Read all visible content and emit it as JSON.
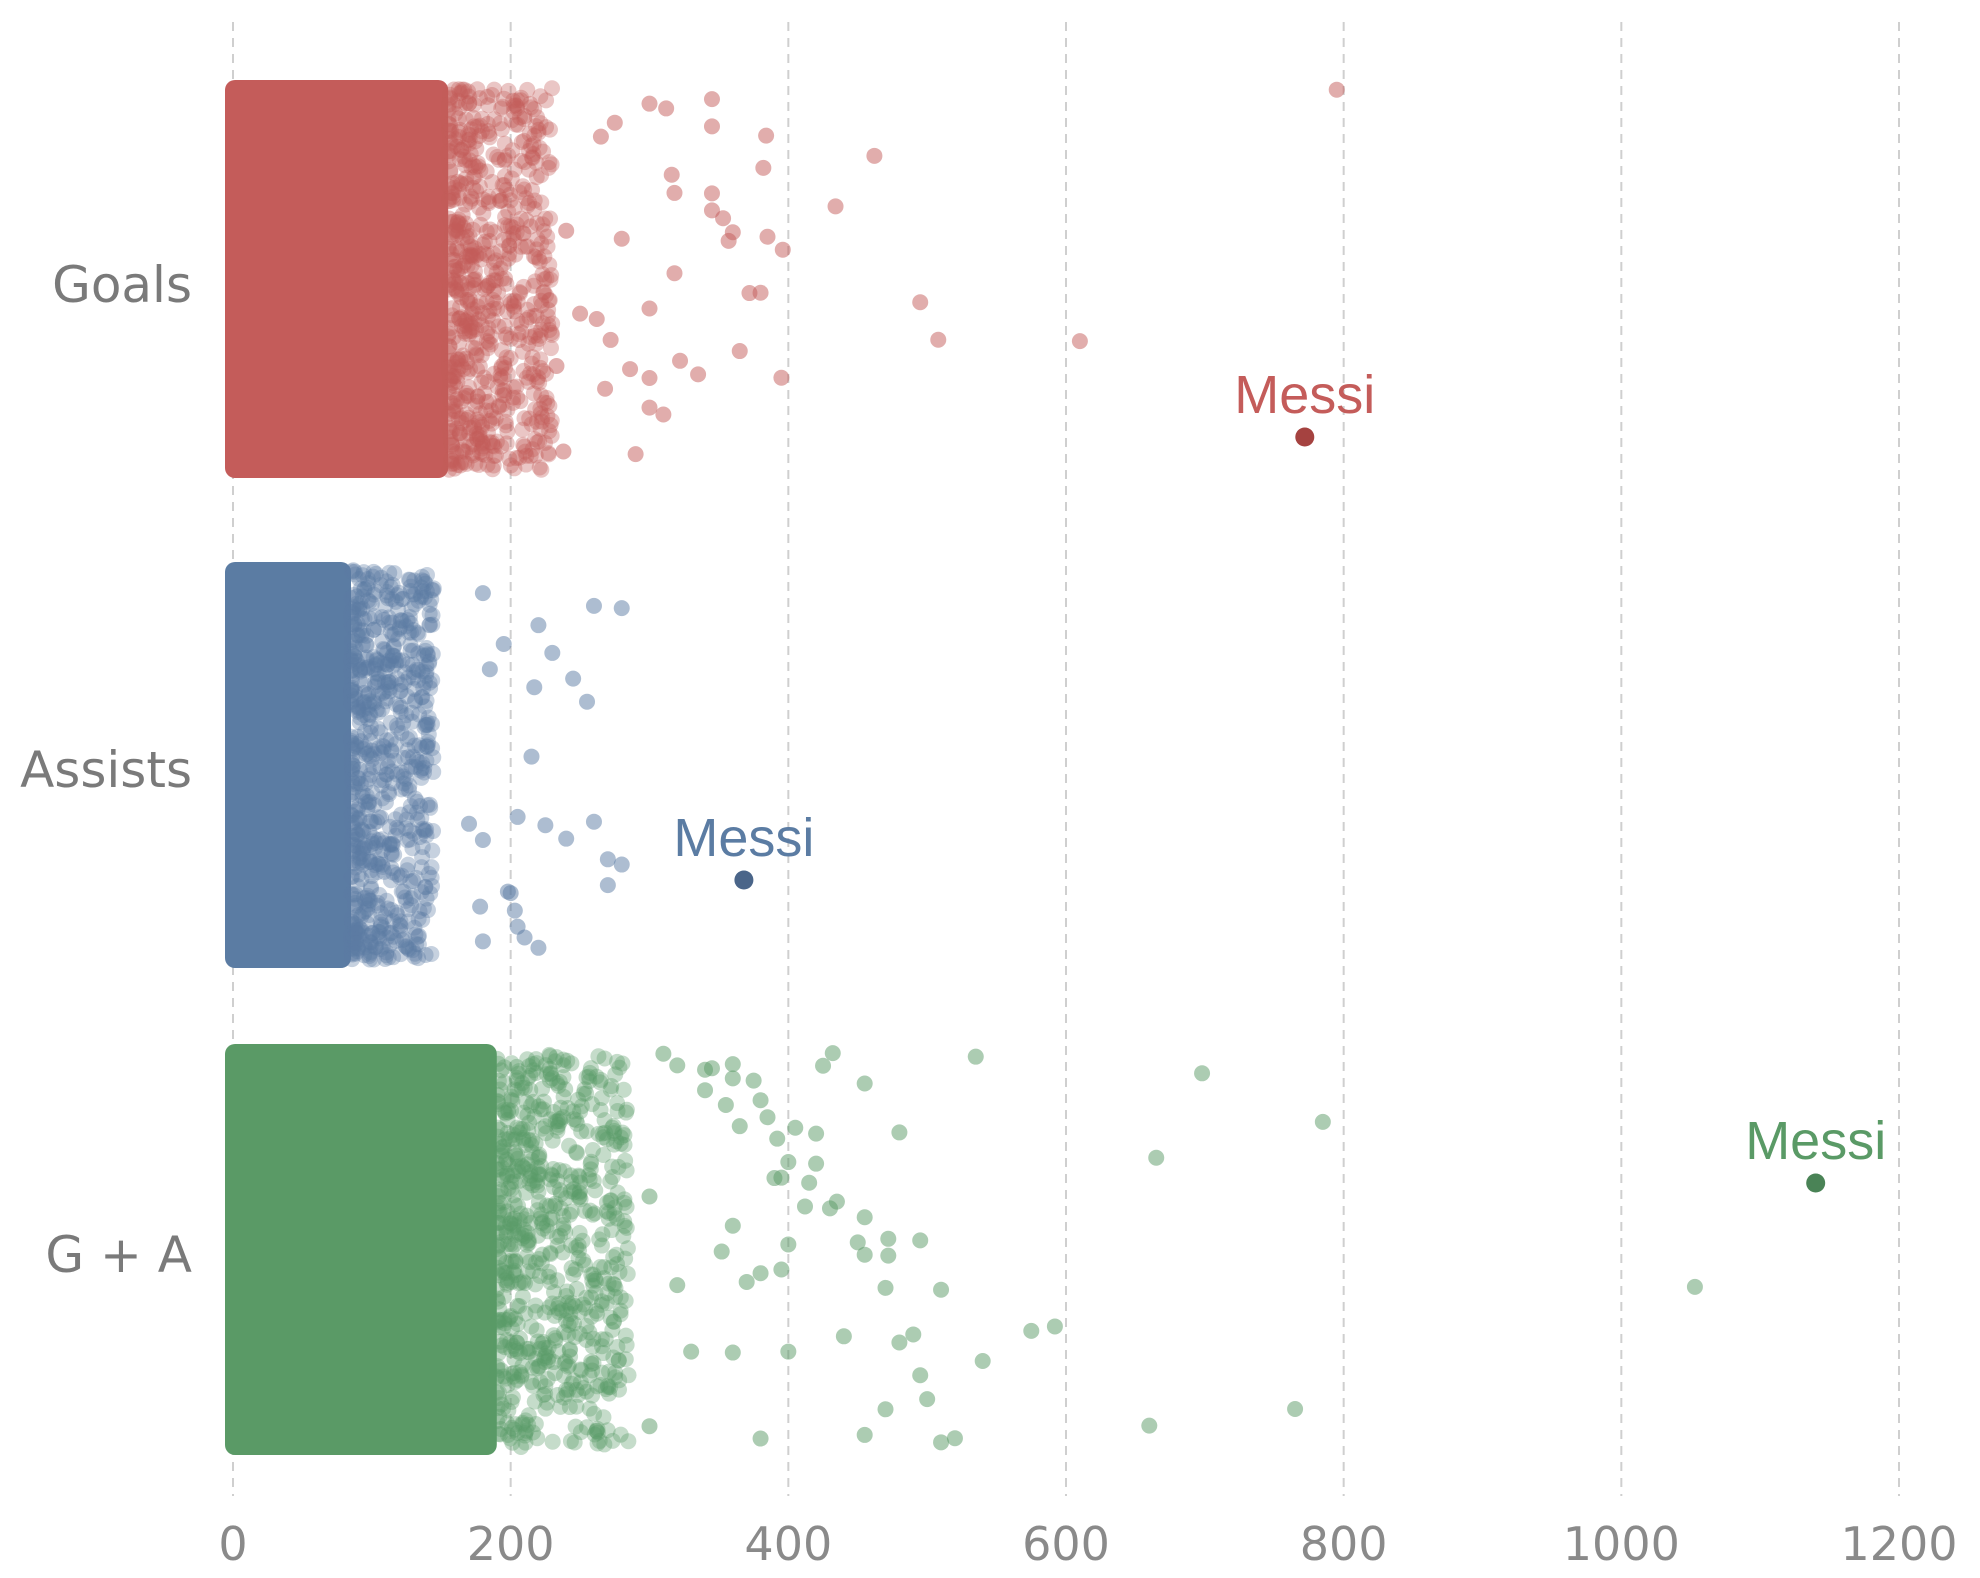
{
  "chart_data": {
    "type": "scatter",
    "xlim": [
      0,
      1200
    ],
    "xticks": [
      0,
      200,
      400,
      600,
      800,
      1000,
      1200
    ],
    "grid": true,
    "categories": [
      "Goals",
      "Assists",
      "G + A"
    ],
    "series": [
      {
        "category": "Goals",
        "color": "#c45c5a",
        "highlight_color": "#a54240",
        "dense_max": 155,
        "fade_end": 230,
        "points": [
          495,
          312,
          372,
          365,
          434,
          395,
          462,
          382,
          380,
          384,
          353,
          357,
          318,
          300,
          290,
          286,
          268,
          262,
          280,
          275,
          250,
          238,
          240,
          233,
          272,
          265,
          300,
          318,
          310,
          345,
          360,
          345,
          396,
          345,
          335,
          322,
          300,
          508,
          610,
          795,
          345,
          385,
          316,
          300
        ],
        "highlight": {
          "label": "Messi",
          "value": 772
        }
      },
      {
        "category": "Assists",
        "color": "#5b7ca3",
        "highlight_color": "#4a6589",
        "dense_max": 85,
        "fade_end": 145,
        "points": [
          270,
          280,
          217,
          180,
          205,
          198,
          170,
          255,
          185,
          180,
          203,
          245,
          230,
          220,
          215,
          200,
          195,
          180,
          260,
          270,
          280,
          178,
          260,
          210,
          240,
          225,
          205,
          220
        ],
        "highlight": {
          "label": "Messi",
          "value": 368
        }
      },
      {
        "category": "G + A",
        "color": "#5a9a66",
        "highlight_color": "#4a8356",
        "dense_max": 190,
        "fade_end": 285,
        "points": [
          455,
          520,
          592,
          660,
          765,
          698,
          665,
          500,
          495,
          470,
          440,
          432,
          412,
          395,
          392,
          380,
          360,
          355,
          352,
          320,
          300,
          540,
          510,
          472,
          425,
          575,
          480,
          455,
          400,
          1053,
          785,
          495,
          480,
          472,
          455,
          450,
          435,
          415,
          405,
          395,
          380,
          370,
          360,
          535,
          510,
          490,
          470,
          455,
          430,
          420,
          400,
          390,
          375,
          360,
          340,
          320,
          300,
          385,
          365,
          345,
          330,
          310,
          420,
          400,
          380,
          360,
          340
        ],
        "highlight": {
          "label": "Messi",
          "value": 1140
        }
      }
    ]
  }
}
